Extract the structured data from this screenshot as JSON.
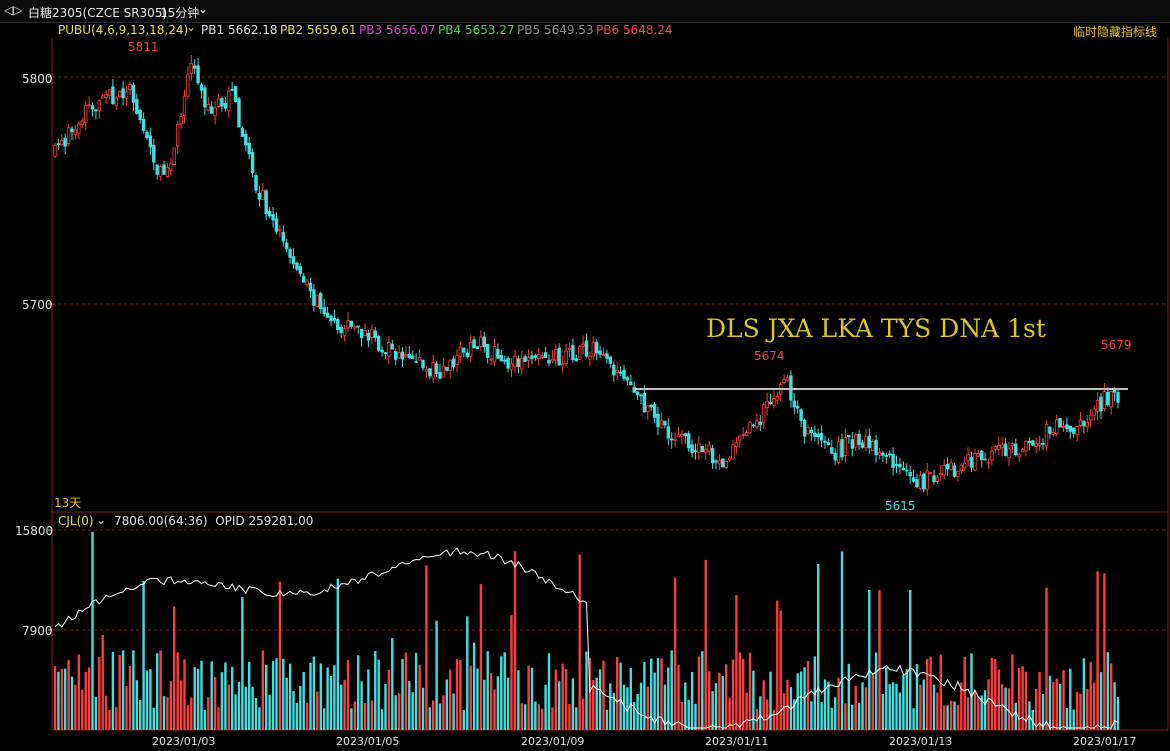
{
  "window": {
    "icon": "arrow-toggle-icon",
    "symbol": "白糖2305(CZCE SR305)",
    "period": "15分钟",
    "period_icon": "chevron-down-icon"
  },
  "price_panel": {
    "indicator_name": "PUBU(4,6,9,13,18,24)",
    "indicator_values": [
      {
        "label": "PB1",
        "value": "5662.18",
        "color": "#e0e0e0"
      },
      {
        "label": "PB2",
        "value": "5659.61",
        "color": "#e8e040"
      },
      {
        "label": "PB3",
        "value": "5656.07",
        "color": "#e040e0"
      },
      {
        "label": "PB4",
        "value": "5653.27",
        "color": "#40e040"
      },
      {
        "label": "PB5",
        "value": "5649.53",
        "color": "#909090"
      },
      {
        "label": "PB6",
        "value": "5648.24",
        "color": "#ff4040"
      }
    ],
    "hide_lines_label": "临时隐藏指标线",
    "y_ticks": [
      "5800",
      "5700"
    ],
    "annotation": "DLS JXA LKA TYS DNA 1st",
    "high_label": "5811",
    "mid_high_label": "5674",
    "low_label": "5615",
    "last_high_label": "5679",
    "days_label": "13天"
  },
  "volume_panel": {
    "indicator_name": "CJL(0)",
    "indicator_values": "7806.00(64:36)  OPID 259281.00",
    "y_ticks": [
      "15800",
      "7900"
    ]
  },
  "x_axis": [
    "2023/01/03",
    "2023/01/05",
    "2023/01/09",
    "2023/01/11",
    "2023/01/13",
    "2023/01/17"
  ],
  "colors": {
    "up": "#ff3c3c",
    "down": "#40e0e0",
    "grid": "#8a1c1c",
    "annotation": "#d8c820"
  },
  "chart_data": {
    "type": "candlestick",
    "price_anchors": [
      [
        0,
        5770
      ],
      [
        10,
        5790
      ],
      [
        22,
        5800
      ],
      [
        29,
        5765
      ],
      [
        33,
        5760
      ],
      [
        40,
        5808
      ],
      [
        45,
        5790
      ],
      [
        52,
        5795
      ],
      [
        58,
        5760
      ],
      [
        70,
        5720
      ],
      [
        80,
        5695
      ],
      [
        90,
        5690
      ],
      [
        100,
        5680
      ],
      [
        112,
        5672
      ],
      [
        124,
        5685
      ],
      [
        136,
        5675
      ],
      [
        150,
        5680
      ],
      [
        160,
        5682
      ],
      [
        167,
        5668
      ],
      [
        177,
        5650
      ],
      [
        186,
        5640
      ],
      [
        196,
        5633
      ],
      [
        206,
        5650
      ],
      [
        214,
        5670
      ],
      [
        220,
        5645
      ],
      [
        228,
        5635
      ],
      [
        236,
        5643
      ],
      [
        246,
        5632
      ],
      [
        252,
        5622
      ],
      [
        262,
        5628
      ],
      [
        272,
        5635
      ],
      [
        286,
        5640
      ],
      [
        294,
        5648
      ],
      [
        300,
        5647
      ],
      [
        308,
        5660
      ],
      [
        312,
        5661
      ]
    ],
    "y_range": [
      5610,
      5815
    ],
    "candles": 313
  }
}
